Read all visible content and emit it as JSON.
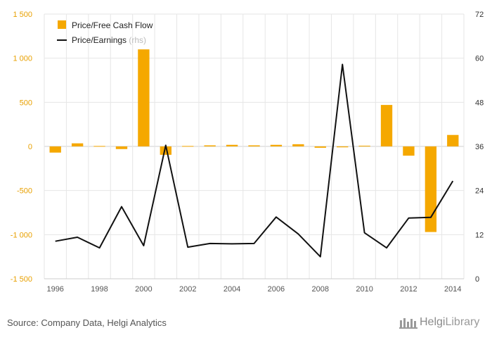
{
  "chart_data": {
    "type": "bar",
    "title": "",
    "xlabel": "",
    "ylabel": "",
    "categories": [
      "1996",
      "1997",
      "1998",
      "1999",
      "2000",
      "2001",
      "2002",
      "2003",
      "2004",
      "2005",
      "2006",
      "2007",
      "2008",
      "2009",
      "2010",
      "2011",
      "2012",
      "2013",
      "2014"
    ],
    "x_tick_labels": [
      "1996",
      "1998",
      "2000",
      "2002",
      "2004",
      "2006",
      "2008",
      "2010",
      "2012",
      "2014"
    ],
    "y_left": {
      "lim": [
        -1500,
        1500
      ],
      "ticks": [
        1500,
        1000,
        500,
        0,
        -500,
        -1000,
        -1500
      ],
      "tick_labels": [
        "1 500",
        "1 000",
        "500",
        "0",
        "-500",
        "-1 000",
        "-1 500"
      ]
    },
    "y_right": {
      "lim": [
        0,
        72
      ],
      "ticks": [
        72,
        60,
        48,
        36,
        24,
        12,
        0
      ],
      "tick_labels": [
        "72",
        "60",
        "48",
        "36",
        "24",
        "12",
        "0"
      ]
    },
    "grid": true,
    "legend_position": "top-left",
    "series": [
      {
        "name": "Price/Free Cash Flow",
        "type": "bar",
        "axis": "left",
        "color": "#f5a800",
        "values": [
          -70,
          35,
          5,
          -30,
          1100,
          -95,
          5,
          12,
          18,
          12,
          18,
          25,
          -15,
          -10,
          8,
          470,
          -105,
          -970,
          130
        ]
      },
      {
        "name": "Price/Earnings",
        "axis_note": "(rhs)",
        "type": "line",
        "axis": "right",
        "color": "#111111",
        "values": [
          10.2,
          11.3,
          8.4,
          19.6,
          9.0,
          36.3,
          8.6,
          9.6,
          9.5,
          9.6,
          16.8,
          12.2,
          6.0,
          58.3,
          12.5,
          8.4,
          16.5,
          16.7,
          26.6
        ]
      }
    ]
  },
  "footer": {
    "source": "Source: Company Data, Helgi Analytics",
    "logo_text_main": "Helgi",
    "logo_text_accent": "Library"
  },
  "colors": {
    "axis_label_left": "#e8a000",
    "axis_label": "#555555",
    "grid": "#e6e6e6",
    "zero_line": "#cfcfcf",
    "plot_bg": "#ffffff",
    "rhs_note": "#bbbbbb"
  }
}
